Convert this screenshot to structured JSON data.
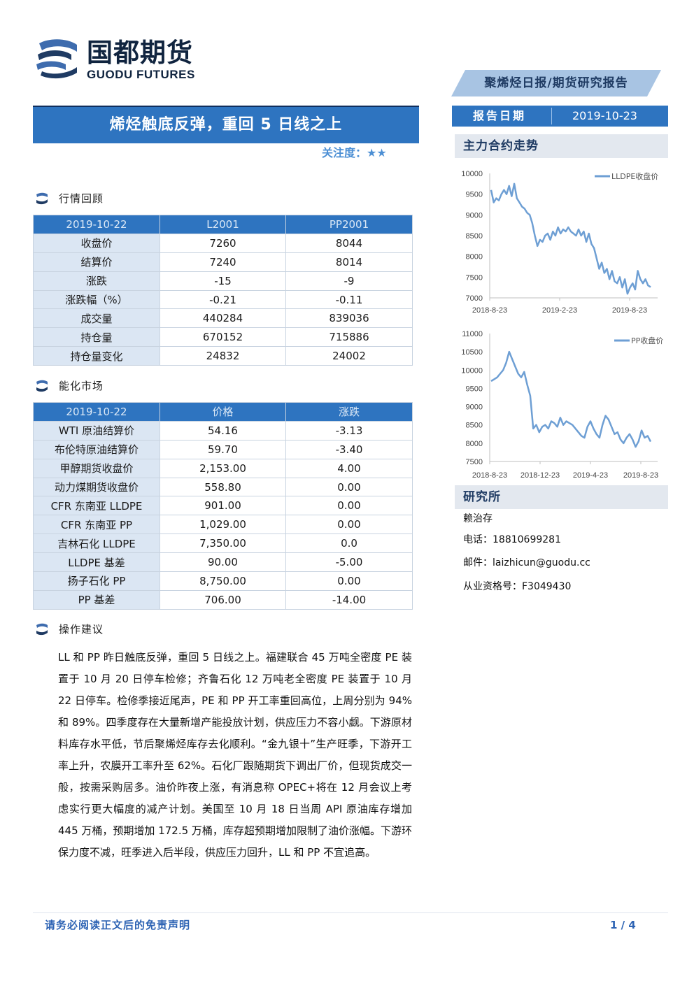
{
  "brand": {
    "name_cn": "国都期货",
    "name_en": "GUODU FUTURES"
  },
  "header": {
    "report_type": "聚烯烃日报/期货研究报告",
    "date_label": "报告日期",
    "date_value": "2019-10-23"
  },
  "title": "烯烃触底反弹，重回 5 日线之上",
  "attention": "关注度：★★",
  "sections": {
    "market_review": "行情回顾",
    "energy_market": "能化市场",
    "advice": "操作建议"
  },
  "market_table": {
    "headers": [
      "2019-10-22",
      "L2001",
      "PP2001"
    ],
    "rows": [
      [
        "收盘价",
        "7260",
        "8044"
      ],
      [
        "结算价",
        "7240",
        "8014"
      ],
      [
        "涨跌",
        "-15",
        "-9"
      ],
      [
        "涨跌幅（%）",
        "-0.21",
        "-0.11"
      ],
      [
        "成交量",
        "440284",
        "839036"
      ],
      [
        "持仓量",
        "670152",
        "715886"
      ],
      [
        "持仓量变化",
        "24832",
        "24002"
      ]
    ]
  },
  "energy_table": {
    "headers": [
      "2019-10-22",
      "价格",
      "涨跌"
    ],
    "rows": [
      [
        "WTI 原油结算价",
        "54.16",
        "-3.13"
      ],
      [
        "布伦特原油结算价",
        "59.70",
        "-3.40"
      ],
      [
        "甲醇期货收盘价",
        "2,153.00",
        "4.00"
      ],
      [
        "动力煤期货收盘价",
        "558.80",
        "0.00"
      ],
      [
        "CFR 东南亚 LLDPE",
        "901.00",
        "0.00"
      ],
      [
        "CFR 东南亚 PP",
        "1,029.00",
        "0.00"
      ],
      [
        "吉林石化 LLDPE",
        "7,350.00",
        "0.0"
      ],
      [
        "LLDPE 基差",
        "90.00",
        "-5.00"
      ],
      [
        "扬子石化 PP",
        "8,750.00",
        "0.00"
      ],
      [
        "PP 基差",
        "706.00",
        "-14.00"
      ]
    ]
  },
  "advice_text": "LL 和 PP 昨日触底反弹，重回 5 日线之上。福建联合 45 万吨全密度 PE 装置于 10 月 20 日停车检修；齐鲁石化 12 万吨老全密度 PE 装置于 10 月 22 日停车。检修季接近尾声，PE 和 PP 开工率重回高位，上周分别为 94%和 89%。四季度存在大量新增产能投放计划，供应压力不容小觑。下游原材料库存水平低，节后聚烯烃库存去化顺利。“金九银十”生产旺季，下游开工率上升，农膜开工率升至 62%。石化厂跟随期货下调出厂价，但现货成交一般，按需采购居多。油价昨夜上涨，有消息称 OPEC+将在 12 月会议上考虑实行更大幅度的减产计划。美国至 10 月 18 日当周 API 原油库存增加 445 万桶，预期增加 172.5 万桶，库存超预期增加限制了油价涨幅。下游环保力度不减，旺季进入后半段，供应压力回升，LL 和 PP 不宜追高。",
  "right_panel": {
    "trend_title": "主力合约走势",
    "research_title": "研究所",
    "analyst": "赖治存",
    "phone": "电话：18810699281",
    "email": "邮件：laizhicun@guodu.cc",
    "license": "从业资格号：F3049430"
  },
  "chart_data": [
    {
      "type": "line",
      "title": "",
      "series": [
        {
          "name": "LLDPE收盘价",
          "values": [
            9600,
            9300,
            9400,
            9350,
            9500,
            9600,
            9500,
            9700,
            9450,
            9750,
            9400,
            9300,
            9200,
            9150,
            9050,
            9000,
            8800,
            8500,
            8250,
            8400,
            8350,
            8500,
            8550,
            8400,
            8600,
            8500,
            8700,
            8550,
            8650,
            8600,
            8700,
            8600,
            8550,
            8500,
            8650,
            8500,
            8600,
            8350,
            8550,
            8300,
            8200,
            7950,
            7700,
            7850,
            7600,
            7700,
            7450,
            7650,
            7400,
            7350,
            7500,
            7250,
            7450,
            7100,
            7250,
            7350,
            7200,
            7650,
            7450,
            7350,
            7450,
            7300,
            7260
          ]
        }
      ],
      "x_ticks": [
        "2018-8-23",
        "2019-2-23",
        "2019-8-23"
      ],
      "y_ticks": [
        "10000",
        "9500",
        "9000",
        "8500",
        "8000",
        "7500",
        "7000"
      ],
      "ylim": [
        7000,
        10000
      ],
      "color": "#6e9fd4",
      "legend": "top-right"
    },
    {
      "type": "line",
      "title": "",
      "series": [
        {
          "name": "PP收盘价",
          "values": [
            9700,
            9750,
            9800,
            9900,
            10000,
            10200,
            10500,
            10300,
            10100,
            9900,
            9800,
            9950,
            9600,
            9300,
            8400,
            8500,
            8300,
            8450,
            8500,
            8400,
            8600,
            8550,
            8450,
            8700,
            8500,
            8600,
            8550,
            8500,
            8400,
            8300,
            8200,
            8150,
            8450,
            8600,
            8400,
            8250,
            8150,
            8500,
            8750,
            8650,
            8450,
            8250,
            8300,
            8100,
            8000,
            8150,
            8250,
            8100,
            7900,
            8050,
            8350,
            8150,
            8200,
            8044
          ]
        }
      ],
      "x_ticks": [
        "2018-8-23",
        "2018-12-23",
        "2019-4-23",
        "2019-8-23"
      ],
      "y_ticks": [
        "11000",
        "10500",
        "10000",
        "9500",
        "9000",
        "8500",
        "8000",
        "7500"
      ],
      "ylim": [
        7500,
        11000
      ],
      "color": "#6e9fd4",
      "legend": "top-right"
    }
  ],
  "footer": {
    "disclaimer": "请务必阅读正文后的免责声明",
    "page": "1 / 4"
  }
}
